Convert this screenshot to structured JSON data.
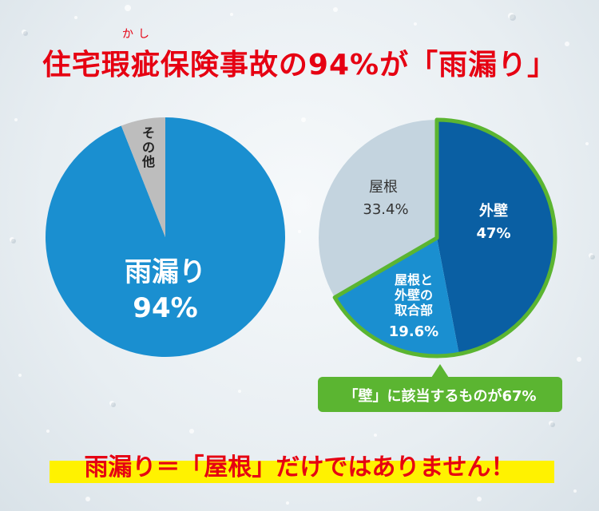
{
  "title": {
    "ruby": "かし",
    "main": "住宅瑕疵保険事故の94%が「雨漏り」"
  },
  "chart_data": [
    {
      "type": "pie",
      "slices": [
        {
          "label": "その他",
          "value": 6,
          "color": "#bdbdbd"
        },
        {
          "label": "雨漏り",
          "value_label": "94%",
          "value": 94,
          "color": "#1a8fd0"
        }
      ]
    },
    {
      "type": "pie",
      "slices": [
        {
          "label": "外壁",
          "value_label": "47%",
          "value": 47,
          "color": "#0a5fa3"
        },
        {
          "label": "屋根と外壁の取合部",
          "label_lines": [
            "屋根と",
            "外壁の",
            "取合部"
          ],
          "value_label": "19.6%",
          "value": 19.6,
          "color": "#1a8fd0"
        },
        {
          "label": "屋根",
          "value_label": "33.4%",
          "value": 33.4,
          "color": "#c4d4df"
        }
      ],
      "highlight": {
        "color": "#5bb531",
        "text": "「壁」に該当するものが67%"
      }
    }
  ],
  "footer": "雨漏り＝「屋根」だけではありません！"
}
